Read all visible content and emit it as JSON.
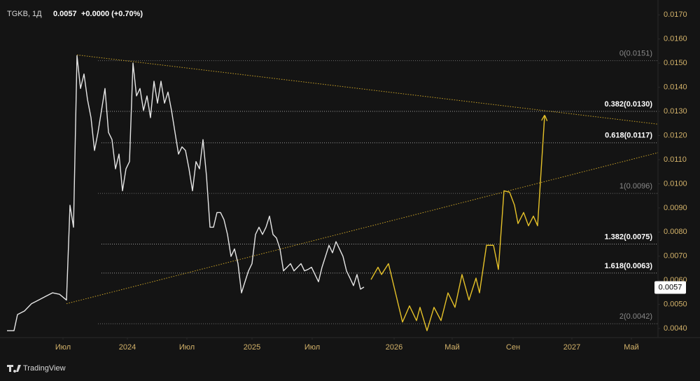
{
  "header": {
    "symbol": "TGKB, 1Д",
    "change": "+0.0000 (+0.70%)",
    "brand": "TradingView"
  },
  "chart_data": {
    "type": "line",
    "last_price": 0.0057,
    "xlim": [
      0,
      470
    ],
    "ylim": [
      0.0038,
      0.0175
    ],
    "xticks": [
      {
        "value": 45,
        "label": "Июл"
      },
      {
        "value": 91,
        "label": "2024"
      },
      {
        "value": 133.5,
        "label": "Июл"
      },
      {
        "value": 180,
        "label": "2025"
      },
      {
        "value": 223,
        "label": "Июл"
      },
      {
        "value": 281.5,
        "label": "2026"
      },
      {
        "value": 323,
        "label": "Май"
      },
      {
        "value": 366.5,
        "label": "Сен"
      },
      {
        "value": 408.5,
        "label": "2027"
      },
      {
        "value": 451,
        "label": "Май"
      }
    ],
    "yticks": [
      {
        "value": 0.004,
        "label": "0.0040"
      },
      {
        "value": 0.005,
        "label": "0.0050"
      },
      {
        "value": 0.006,
        "label": "0.0060"
      },
      {
        "value": 0.007,
        "label": "0.0070"
      },
      {
        "value": 0.008,
        "label": "0.0080"
      },
      {
        "value": 0.009,
        "label": "0.0090"
      },
      {
        "value": 0.01,
        "label": "0.0100"
      },
      {
        "value": 0.011,
        "label": "0.0110"
      },
      {
        "value": 0.012,
        "label": "0.0120"
      },
      {
        "value": 0.013,
        "label": "0.0130"
      },
      {
        "value": 0.014,
        "label": "0.0140"
      },
      {
        "value": 0.015,
        "label": "0.0150"
      },
      {
        "value": 0.016,
        "label": "0.0160"
      },
      {
        "value": 0.017,
        "label": "0.0170"
      }
    ],
    "series": [
      {
        "color": "#e6e6e6",
        "x": [
          5,
          10,
          12.5,
          17.5,
          22.5,
          27.5,
          32.5,
          37.5,
          42.5,
          47.5,
          50,
          52.5,
          55,
          57.5,
          60,
          62.5,
          65,
          67.5,
          70,
          72.5,
          75,
          77.5,
          80,
          82.5,
          85,
          87.5,
          90,
          92.5,
          95,
          97.5,
          100,
          102.5,
          105,
          107.5,
          110,
          112.5,
          115,
          117.5,
          120,
          122.5,
          125,
          127.5,
          130,
          132.5,
          135,
          137.5,
          140,
          142.5,
          145,
          147.5,
          150,
          152.5,
          155,
          157.5,
          160,
          162.5,
          165,
          167.5,
          170,
          172.5,
          175,
          177.5,
          180,
          182.5,
          185,
          187.5,
          190,
          192.5,
          195,
          197.5,
          200,
          202.5,
          205,
          207.5,
          210,
          212.5,
          215,
          217.5,
          220,
          222.5,
          225,
          227.5,
          230,
          232.5,
          235,
          237.5,
          240,
          242.5,
          245,
          247.5,
          250,
          252.5,
          255,
          257.5,
          260
        ],
        "values": [
          0.00391,
          0.00391,
          0.00458,
          0.00473,
          0.00503,
          0.00518,
          0.00533,
          0.00548,
          0.00542,
          0.00518,
          0.00911,
          0.0082,
          0.01531,
          0.01395,
          0.01455,
          0.01349,
          0.01274,
          0.01138,
          0.01213,
          0.01304,
          0.01395,
          0.01213,
          0.01183,
          0.01062,
          0.01123,
          0.00971,
          0.01062,
          0.01092,
          0.015,
          0.01364,
          0.01395,
          0.01304,
          0.01364,
          0.01274,
          0.01425,
          0.01334,
          0.01425,
          0.01334,
          0.0138,
          0.01304,
          0.01213,
          0.01123,
          0.01153,
          0.01138,
          0.01062,
          0.00971,
          0.01092,
          0.01062,
          0.01183,
          0.01032,
          0.0082,
          0.0082,
          0.00881,
          0.00881,
          0.00851,
          0.0079,
          0.00699,
          0.0073,
          0.00669,
          0.00548,
          0.00594,
          0.00639,
          0.00669,
          0.0079,
          0.0082,
          0.0079,
          0.0082,
          0.00866,
          0.0079,
          0.00775,
          0.0073,
          0.00639,
          0.00654,
          0.00669,
          0.00639,
          0.00654,
          0.00669,
          0.00639,
          0.00645,
          0.00654,
          0.00624,
          0.00594,
          0.00654,
          0.00699,
          0.00745,
          0.00714,
          0.0076,
          0.0073,
          0.00699,
          0.00639,
          0.00609,
          0.00578,
          0.00624,
          0.00563,
          0.00572
        ]
      },
      {
        "color": "#e6c229",
        "x": [
          265,
          270,
          272.5,
          277.5,
          282.5,
          287.5,
          292.5,
          297.5,
          300,
          305,
          310,
          315,
          320,
          325,
          330,
          335,
          340,
          342.5,
          347.5,
          352.5,
          356,
          360,
          364,
          367.5,
          370,
          374,
          377.5,
          381,
          384,
          389
        ],
        "values": [
          0.00603,
          0.00654,
          0.00624,
          0.00669,
          0.00548,
          0.00427,
          0.00494,
          0.00433,
          0.00488,
          0.00391,
          0.00488,
          0.00433,
          0.00548,
          0.00488,
          0.00624,
          0.00518,
          0.00609,
          0.00548,
          0.00745,
          0.00745,
          0.00645,
          0.00971,
          0.00965,
          0.00911,
          0.00835,
          0.00881,
          0.00826,
          0.00866,
          0.00826,
          0.0128
        ]
      }
    ],
    "trendlines": [
      {
        "color": "#c9a227",
        "x": [
          55,
          470
        ],
        "values": [
          0.01534,
          0.01247
        ]
      },
      {
        "color": "#c9a227",
        "x": [
          47.5,
          470
        ],
        "values": [
          0.00503,
          0.01129
        ]
      }
    ],
    "levels": [
      {
        "label": "0(0.0151)",
        "value": 0.0151,
        "emphasis": false
      },
      {
        "label": "0.382(0.0130)",
        "value": 0.013,
        "emphasis": true
      },
      {
        "label": "0.618(0.0117)",
        "value": 0.0117,
        "emphasis": true
      },
      {
        "label": "1(0.0096)",
        "value": 0.0096,
        "emphasis": false
      },
      {
        "label": "1.382(0.0075)",
        "value": 0.0075,
        "emphasis": true
      },
      {
        "label": "1.618(0.0063)",
        "value": 0.0063,
        "emphasis": true
      },
      {
        "label": "2(0.0042)",
        "value": 0.0042,
        "emphasis": false
      }
    ]
  }
}
